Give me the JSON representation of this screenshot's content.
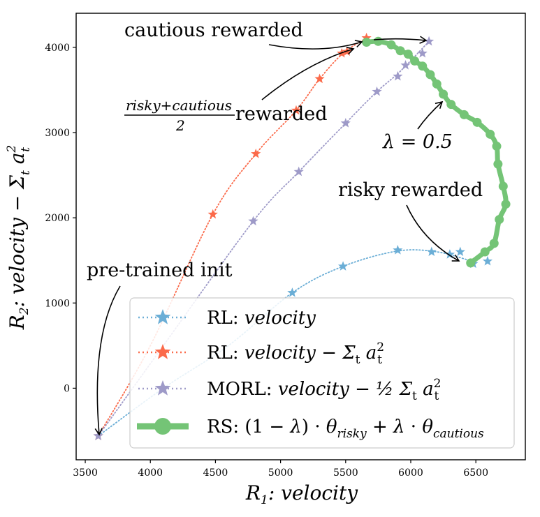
{
  "chart_data": {
    "type": "scatter",
    "title": "",
    "xlabel": {
      "prefix": "R",
      "sub": "1",
      "rest": ": velocity"
    },
    "ylabel": {
      "prefix": "R",
      "sub": "2",
      "rest": ": velocity − Σ",
      "sub2": "t",
      "tail": " a",
      "sup": "2",
      "sub3": "t"
    },
    "xlim": [
      3430,
      6880
    ],
    "ylim": [
      -840,
      4400
    ],
    "xticks": [
      3500,
      4000,
      4500,
      5000,
      5500,
      6000,
      6500
    ],
    "yticks": [
      0,
      1000,
      2000,
      3000,
      4000
    ],
    "series": [
      {
        "name": "RL: velocity",
        "legend": {
          "pre": "RL: ",
          "it": "velocity",
          "post": ""
        },
        "color": "#6baed6",
        "marker": "star",
        "line": "dotted",
        "points": [
          [
            3600,
            -560
          ],
          [
            5090,
            1120
          ],
          [
            5480,
            1430
          ],
          [
            5900,
            1620
          ],
          [
            6160,
            1600
          ],
          [
            6300,
            1570
          ],
          [
            6380,
            1600
          ],
          [
            6480,
            1460
          ],
          [
            6590,
            1490
          ]
        ],
        "curve": [
          [
            3600,
            -560
          ],
          [
            4100,
            0
          ],
          [
            4600,
            500
          ],
          [
            5090,
            1120
          ],
          [
            5480,
            1430
          ],
          [
            5900,
            1610
          ],
          [
            6200,
            1600
          ],
          [
            6450,
            1500
          ]
        ]
      },
      {
        "name": "RL: velocity - sum_t a_t^2",
        "legend": {
          "pre": "RL: ",
          "it": "velocity − Σ",
          "sub": "t",
          "tail": " a",
          "sup": "2",
          "sub2": "t"
        },
        "color": "#fb6a4a",
        "marker": "star",
        "line": "dotted",
        "points": [
          [
            3600,
            -560
          ],
          [
            4480,
            2040
          ],
          [
            4810,
            2750
          ],
          [
            5120,
            3260
          ],
          [
            5300,
            3630
          ],
          [
            5470,
            3930
          ],
          [
            5510,
            3950
          ],
          [
            5660,
            4110
          ]
        ],
        "curve": [
          [
            3600,
            -560
          ],
          [
            4000,
            500
          ],
          [
            4480,
            2040
          ],
          [
            4810,
            2750
          ],
          [
            5120,
            3260
          ],
          [
            5300,
            3630
          ],
          [
            5480,
            3930
          ],
          [
            5660,
            4110
          ]
        ]
      },
      {
        "name": "MORL: velocity - 1/2 sum_t a_t^2",
        "legend": {
          "pre": "MORL: ",
          "it": "velocity − ½ Σ",
          "sub": "t",
          "tail": " a",
          "sup": "2",
          "sub2": "t"
        },
        "color": "#9e9ac8",
        "marker": "star",
        "line": "dotted",
        "points": [
          [
            3600,
            -560
          ],
          [
            4790,
            1960
          ],
          [
            5140,
            2540
          ],
          [
            5500,
            3110
          ],
          [
            5740,
            3480
          ],
          [
            5900,
            3660
          ],
          [
            5960,
            3790
          ],
          [
            6090,
            3930
          ],
          [
            6140,
            4070
          ]
        ],
        "curve": [
          [
            3600,
            -560
          ],
          [
            4100,
            500
          ],
          [
            4790,
            1960
          ],
          [
            5140,
            2540
          ],
          [
            5500,
            3110
          ],
          [
            5740,
            3480
          ],
          [
            5920,
            3720
          ],
          [
            6140,
            4070
          ]
        ]
      },
      {
        "name": "RS: (1-lambda) theta_risky + lambda theta_cautious",
        "legend": {
          "pre": "RS: (1 − ",
          "it": "λ",
          "mid": ") · ",
          "theta": "θ",
          "sub": "risky",
          "plus": " + ",
          "it2": "λ",
          "dot": " · ",
          "theta2": "θ",
          "sub2": "cautious"
        },
        "color": "#74c476",
        "marker": "circle",
        "line": "solid",
        "points": [
          [
            5660,
            4060
          ],
          [
            5750,
            4070
          ],
          [
            5850,
            4030
          ],
          [
            5920,
            3960
          ],
          [
            5980,
            3920
          ],
          [
            6030,
            3840
          ],
          [
            6090,
            3780
          ],
          [
            6150,
            3680
          ],
          [
            6200,
            3570
          ],
          [
            6250,
            3450
          ],
          [
            6310,
            3330
          ],
          [
            6410,
            3210
          ],
          [
            6510,
            3120
          ],
          [
            6610,
            2980
          ],
          [
            6660,
            2840
          ],
          [
            6670,
            2630
          ],
          [
            6710,
            2370
          ],
          [
            6730,
            2160
          ],
          [
            6680,
            1980
          ],
          [
            6640,
            1700
          ],
          [
            6570,
            1600
          ],
          [
            6460,
            1470
          ]
        ]
      }
    ],
    "annotations": [
      {
        "text": "cautious rewarded"
      },
      {
        "text_num": "risky+cautious",
        "text_den": "2",
        "text_tail": " rewarded"
      },
      {
        "text": "λ = 0.5"
      },
      {
        "text": "risky rewarded"
      },
      {
        "text": "pre-trained init"
      }
    ]
  }
}
